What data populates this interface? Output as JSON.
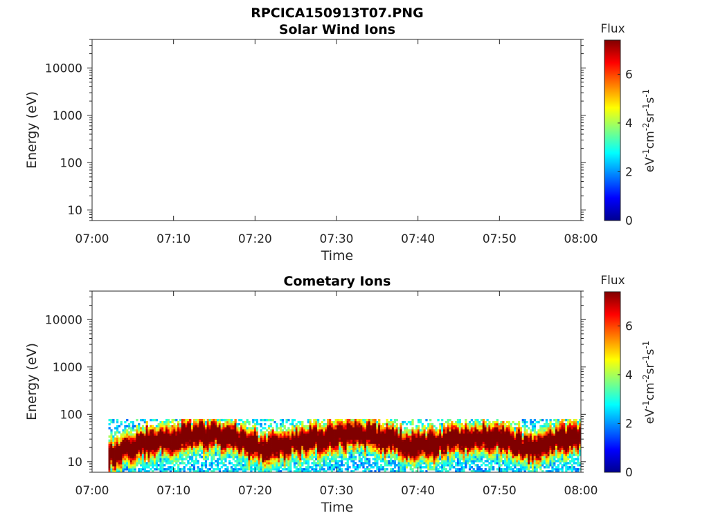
{
  "figure": {
    "title": "RPCICA150913T07.PNG"
  },
  "colorbar": {
    "label": "Flux",
    "unit_text": {
      "eV": "eV",
      "cm": "cm",
      "sr": "sr",
      "s": "s",
      "exp": "-1",
      "exp2": "-2"
    },
    "range": [
      0,
      7.4
    ],
    "ticks": [
      "0",
      "2",
      "4",
      "6"
    ],
    "tick_values": [
      0,
      2,
      4,
      6
    ],
    "colormap": "jet"
  },
  "chart_data": [
    {
      "type": "heatmap",
      "title": "Solar Wind Ions",
      "xlabel": "Time",
      "ylabel": "Energy (eV)",
      "xticks": [
        "07:00",
        "07:10",
        "07:20",
        "07:30",
        "07:40",
        "07:50",
        "08:00"
      ],
      "xlim": [
        "07:00",
        "08:00"
      ],
      "yscale": "log",
      "ylim": [
        6,
        40000
      ],
      "yticks": [
        "10",
        "100",
        "1000",
        "10000"
      ],
      "ytick_values": [
        10,
        100,
        1000,
        10000
      ],
      "data": []
    },
    {
      "type": "heatmap",
      "title": "Cometary Ions",
      "xlabel": "Time",
      "ylabel": "Energy (eV)",
      "xticks": [
        "07:00",
        "07:10",
        "07:20",
        "07:30",
        "07:40",
        "07:50",
        "08:00"
      ],
      "xlim": [
        "07:00",
        "08:00"
      ],
      "yscale": "log",
      "ylim": [
        6,
        40000
      ],
      "yticks": [
        "10",
        "100",
        "1000",
        "10000"
      ],
      "ytick_values": [
        10,
        100,
        1000,
        10000
      ],
      "signal": {
        "start_time": "07:02",
        "end_time": "08:00",
        "energy_top": 80,
        "energy_bottom": 6,
        "peak_flux": 7.2,
        "peak_energy_track": [
          [
            "07:03",
            15
          ],
          [
            "07:06",
            25
          ],
          [
            "07:09",
            28
          ],
          [
            "07:12",
            35
          ],
          [
            "07:15",
            38
          ],
          [
            "07:18",
            30
          ],
          [
            "07:21",
            18
          ],
          [
            "07:24",
            25
          ],
          [
            "07:27",
            30
          ],
          [
            "07:30",
            35
          ],
          [
            "07:33",
            38
          ],
          [
            "07:36",
            30
          ],
          [
            "07:39",
            22
          ],
          [
            "07:42",
            25
          ],
          [
            "07:45",
            30
          ],
          [
            "07:48",
            35
          ],
          [
            "07:51",
            28
          ],
          [
            "07:54",
            18
          ],
          [
            "07:57",
            30
          ],
          [
            "08:00",
            32
          ]
        ]
      }
    }
  ]
}
